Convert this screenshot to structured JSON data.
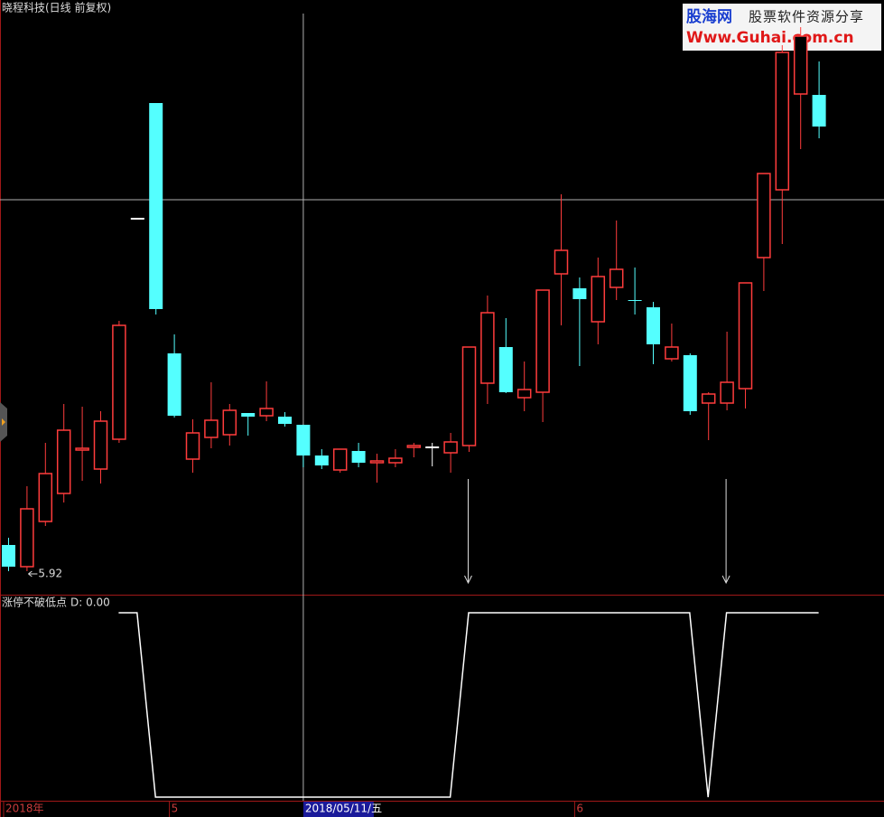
{
  "chart_data": [
    {
      "type": "candlestick",
      "title": "晓程科技(日线 前复权)",
      "categories": [
        "2018年",
        null,
        null,
        null,
        null,
        null,
        null,
        null,
        null,
        "5",
        null,
        null,
        null,
        null,
        null,
        null,
        null,
        null,
        null,
        null,
        null,
        null,
        null,
        null,
        null,
        null,
        null,
        null,
        null,
        null,
        null,
        "6",
        null,
        null,
        null,
        null,
        null,
        null,
        null,
        null,
        null,
        null,
        null,
        null,
        null
      ],
      "open": [
        6.21,
        5.97,
        6.47,
        6.78,
        7.26,
        7.05,
        7.38,
        9.82,
        11.1,
        8.33,
        7.16,
        7.4,
        7.43,
        7.67,
        7.64,
        7.63,
        7.54,
        7.2,
        7.04,
        7.25,
        7.12,
        7.12,
        7.29,
        7.29,
        7.23,
        7.31,
        8.0,
        8.4,
        7.84,
        7.9,
        9.21,
        9.05,
        8.68,
        9.06,
        8.92,
        8.84,
        8.27,
        8.31,
        7.78,
        7.78,
        7.94,
        9.39,
        10.14,
        11.2,
        11.19
      ],
      "close": [
        5.97,
        6.61,
        7.0,
        7.48,
        7.28,
        7.58,
        8.64,
        9.82,
        8.82,
        7.64,
        7.45,
        7.59,
        7.7,
        7.63,
        7.72,
        7.55,
        7.2,
        7.09,
        7.27,
        7.12,
        7.14,
        7.17,
        7.31,
        7.29,
        7.35,
        8.4,
        8.78,
        7.9,
        7.93,
        9.03,
        9.47,
        8.93,
        9.18,
        9.26,
        8.91,
        8.43,
        8.4,
        7.69,
        7.88,
        8.01,
        9.11,
        10.32,
        11.66,
        11.84,
        10.84
      ],
      "high": [
        6.29,
        6.86,
        7.34,
        7.77,
        7.74,
        7.69,
        8.69,
        9.82,
        11.1,
        8.54,
        7.6,
        8.01,
        7.77,
        7.67,
        8.02,
        7.68,
        7.54,
        7.27,
        7.27,
        7.34,
        7.22,
        7.27,
        7.34,
        7.34,
        7.45,
        8.4,
        8.97,
        8.72,
        8.24,
        9.03,
        10.09,
        9.17,
        9.39,
        9.8,
        9.28,
        8.9,
        8.66,
        8.33,
        7.9,
        8.57,
        9.11,
        10.32,
        11.74,
        11.94,
        11.56
      ],
      "low": [
        5.92,
        5.92,
        6.42,
        6.68,
        6.92,
        6.89,
        7.34,
        9.82,
        8.76,
        7.62,
        7.01,
        7.28,
        7.31,
        7.42,
        7.58,
        7.52,
        7.07,
        7.05,
        7.01,
        7.07,
        6.9,
        7.07,
        7.18,
        7.08,
        7.01,
        7.24,
        7.77,
        7.89,
        7.69,
        7.57,
        8.64,
        8.19,
        8.43,
        8.92,
        8.76,
        8.21,
        8.24,
        7.65,
        7.37,
        7.7,
        7.72,
        9.02,
        9.54,
        10.59,
        10.71
      ],
      "ylim": [
        5.67,
        12.09
      ],
      "up_color": "#ff3c3c",
      "down_color": "#54ffff",
      "flat_color": "#ffffff",
      "cursor": {
        "index": 16,
        "price": 10.03,
        "label": "2018/05/11/五"
      }
    },
    {
      "type": "line",
      "title": "涨停不破低点",
      "readout": "D: 0.00",
      "values": [
        null,
        null,
        null,
        null,
        null,
        null,
        1,
        1,
        0,
        0,
        0,
        0,
        0,
        0,
        0,
        0,
        0,
        0,
        0,
        0,
        0,
        0,
        0,
        0,
        0,
        1,
        1,
        1,
        1,
        1,
        1,
        1,
        1,
        1,
        1,
        1,
        1,
        1,
        0,
        1,
        1,
        1,
        1,
        1,
        1
      ],
      "ylim": [
        0,
        1
      ],
      "color": "#ffffff"
    }
  ],
  "watermark": {
    "brand": "股海网",
    "slogan": "股票软件资源分享",
    "url": "Www.Guhai.com.cn"
  }
}
